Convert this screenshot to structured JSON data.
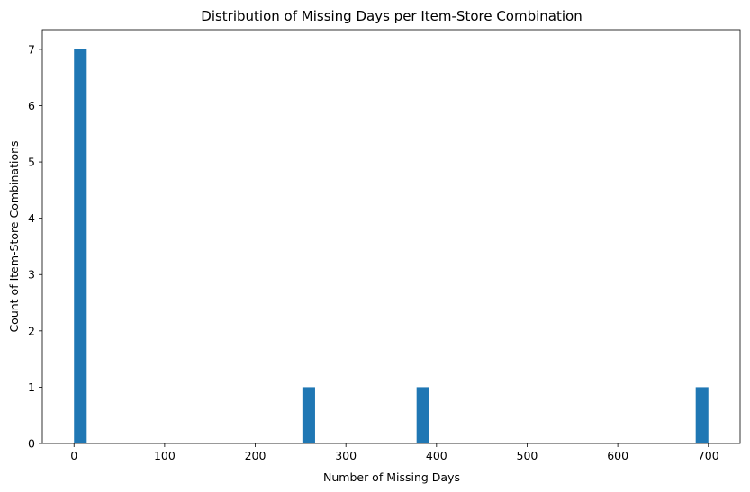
{
  "chart_data": {
    "type": "bar",
    "title": "Distribution of Missing Days per Item-Store Combination",
    "xlabel": "Number of Missing Days",
    "ylabel": "Count of Item-Store Combinations",
    "xlim": [
      -35,
      735
    ],
    "ylim": [
      0,
      7.35
    ],
    "xticks": [
      0,
      100,
      200,
      300,
      400,
      500,
      600,
      700
    ],
    "yticks": [
      0,
      1,
      2,
      3,
      4,
      5,
      6,
      7
    ],
    "grid": false,
    "bin_width": 14,
    "bars": [
      {
        "x_start": 0,
        "x_end": 14,
        "value": 7
      },
      {
        "x_start": 252,
        "x_end": 266,
        "value": 1
      },
      {
        "x_start": 378,
        "x_end": 392,
        "value": 1
      },
      {
        "x_start": 686,
        "x_end": 700,
        "value": 1
      }
    ],
    "bar_color": "#1f77b4"
  }
}
